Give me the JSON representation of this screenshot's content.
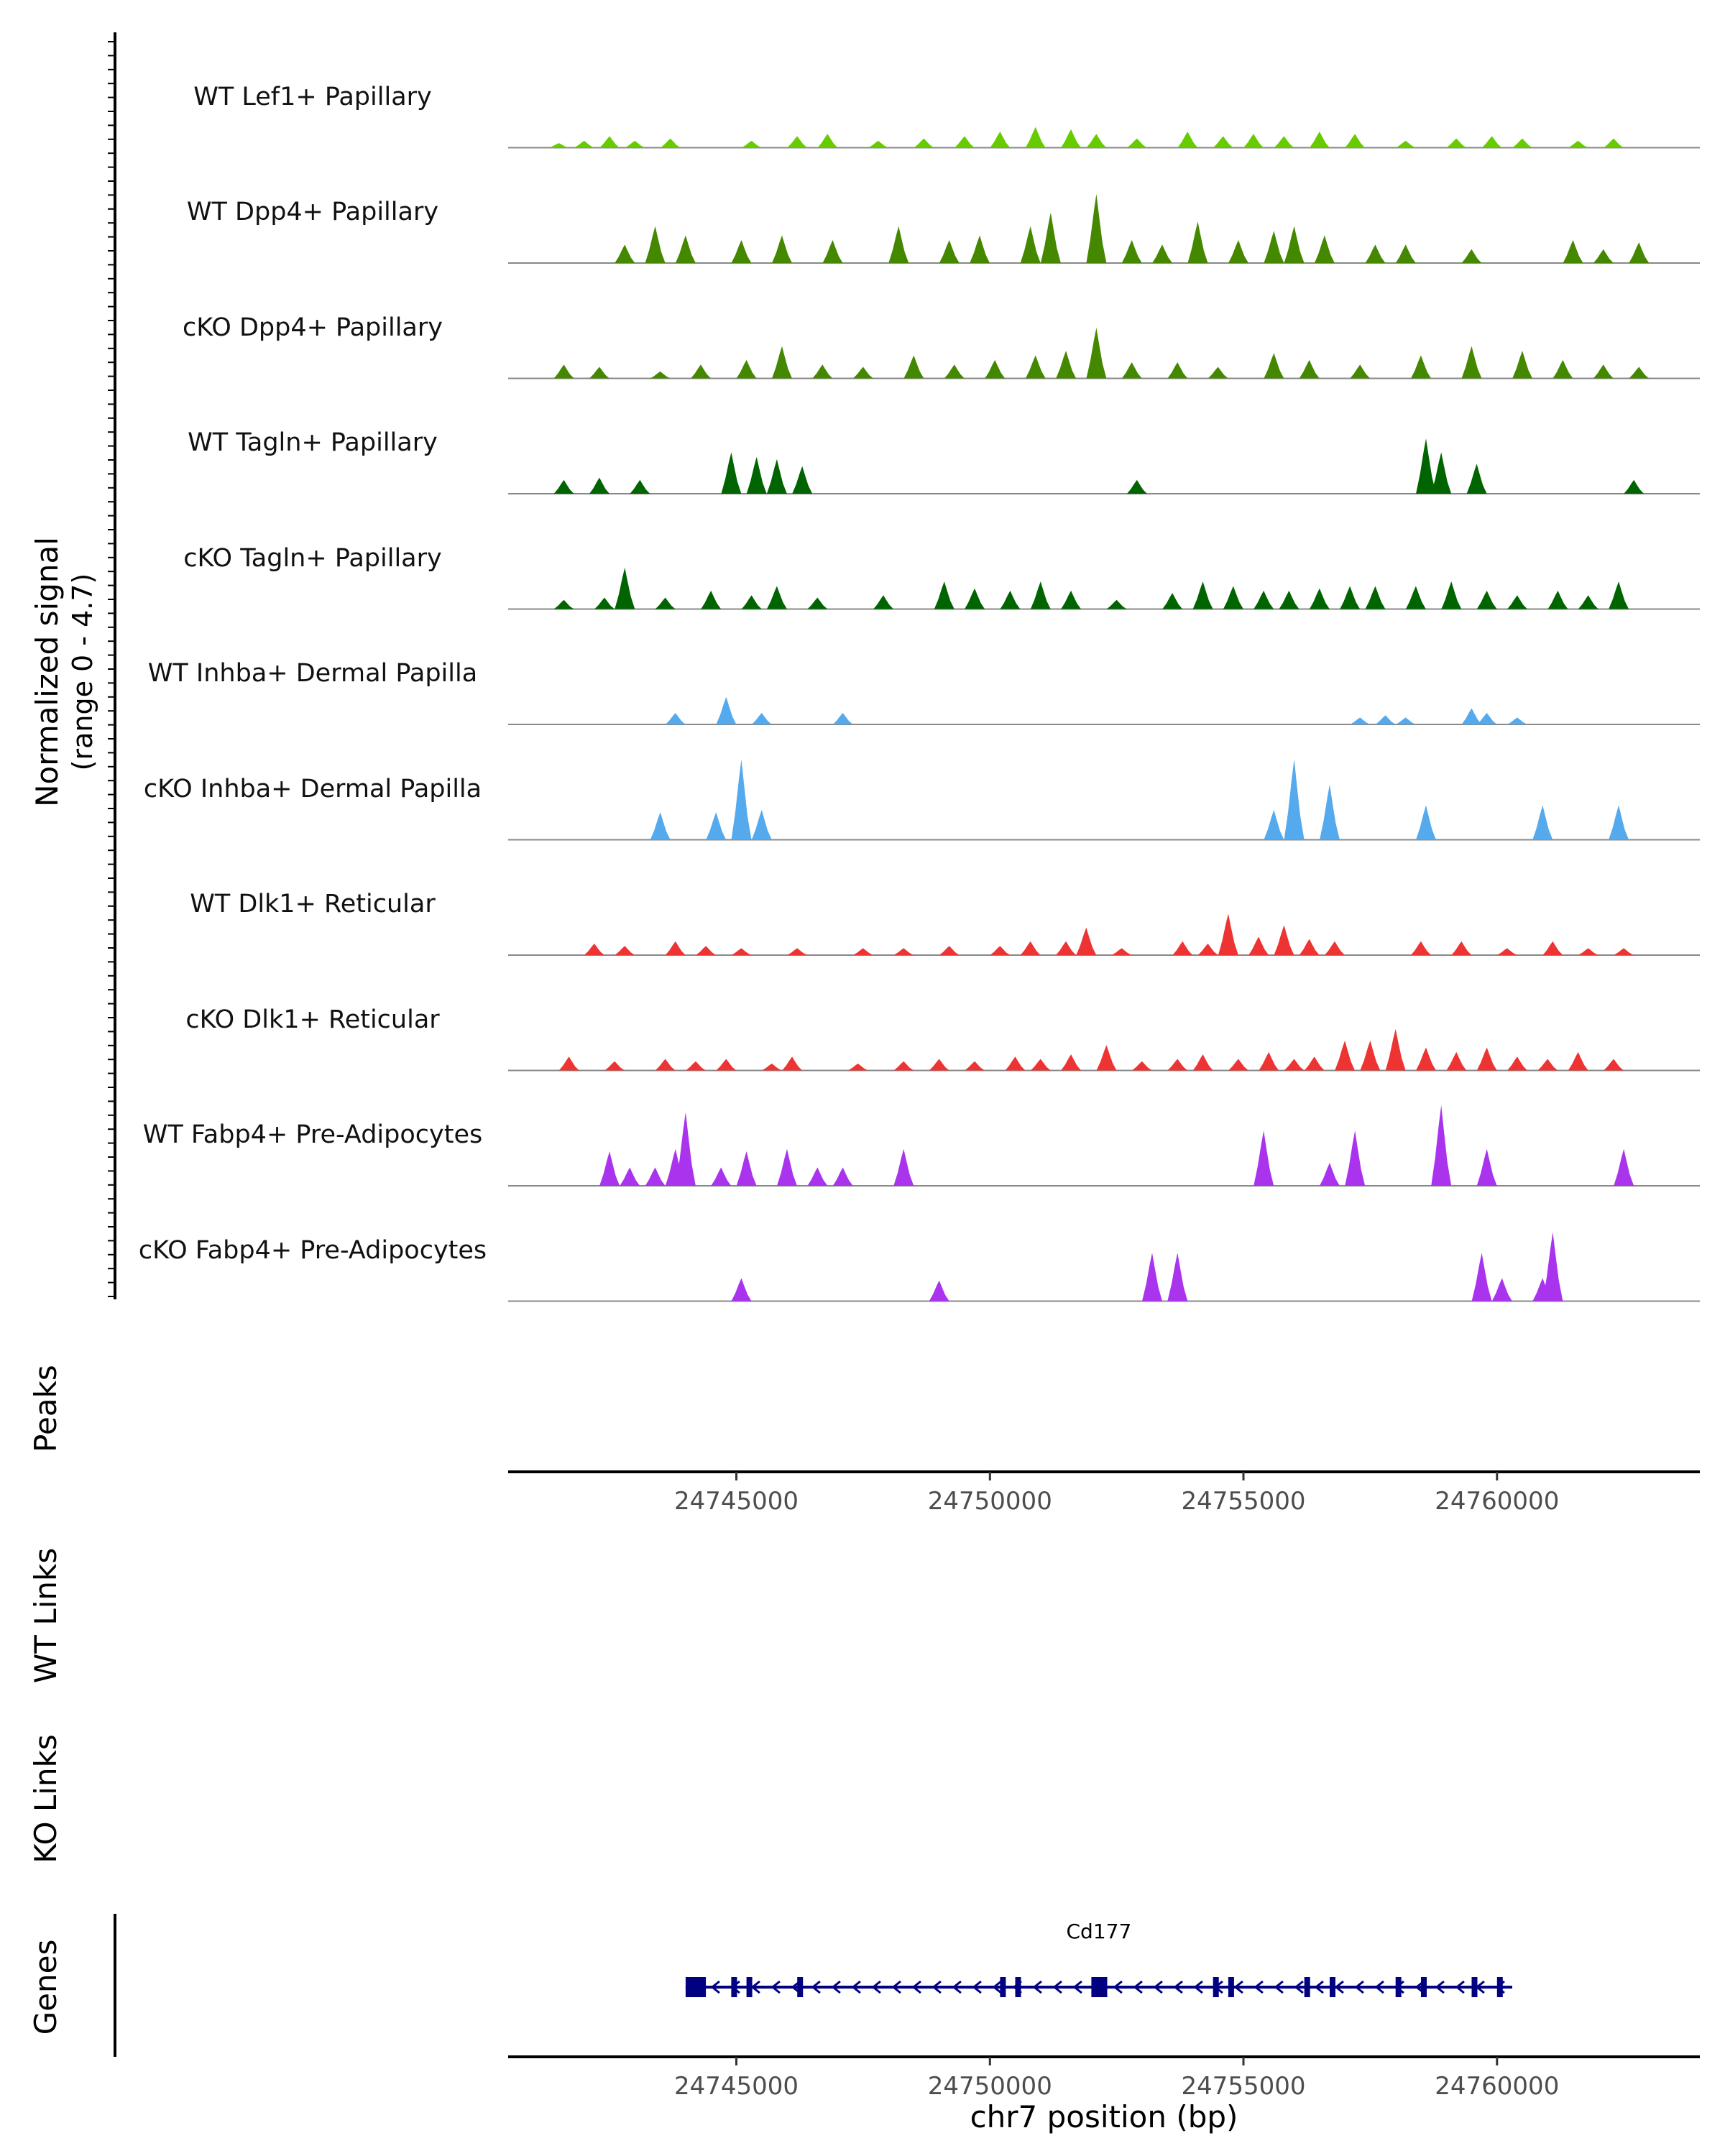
{
  "chart_data": {
    "type": "area",
    "title": "",
    "y_axis_label": "Normalized signal",
    "y_axis_range_label": "(range 0 - 4.7)",
    "y_range": [
      0,
      4.7
    ],
    "x_range": [
      24740500,
      24764000
    ],
    "x_axis_label": "chr7 position (bp)",
    "x_ticks": [
      24745000,
      24750000,
      24755000,
      24760000
    ],
    "x_tick_labels": [
      "24745000",
      "24750000",
      "24755000",
      "24760000"
    ],
    "track_labels": {
      "peaks": "Peaks",
      "wt_links": "WT Links",
      "ko_links": "KO Links",
      "genes": "Genes"
    },
    "series": [
      {
        "name": "WT Lef1+ Papillary",
        "color": "#66cc00",
        "peaks": [
          [
            24741500,
            0.2
          ],
          [
            24742000,
            0.3
          ],
          [
            24742500,
            0.5
          ],
          [
            24743000,
            0.3
          ],
          [
            24743700,
            0.4
          ],
          [
            24745300,
            0.3
          ],
          [
            24746200,
            0.5
          ],
          [
            24746800,
            0.6
          ],
          [
            24747800,
            0.3
          ],
          [
            24748700,
            0.4
          ],
          [
            24749500,
            0.5
          ],
          [
            24750200,
            0.7
          ],
          [
            24750900,
            0.9
          ],
          [
            24751600,
            0.8
          ],
          [
            24752100,
            0.6
          ],
          [
            24752900,
            0.4
          ],
          [
            24753900,
            0.7
          ],
          [
            24754600,
            0.5
          ],
          [
            24755200,
            0.6
          ],
          [
            24755800,
            0.5
          ],
          [
            24756500,
            0.7
          ],
          [
            24757200,
            0.6
          ],
          [
            24758200,
            0.3
          ],
          [
            24759200,
            0.4
          ],
          [
            24759900,
            0.5
          ],
          [
            24760500,
            0.4
          ],
          [
            24761600,
            0.3
          ],
          [
            24762300,
            0.4
          ]
        ]
      },
      {
        "name": "WT Dpp4+ Papillary",
        "color": "#448800",
        "peaks": [
          [
            24742800,
            0.8
          ],
          [
            24743400,
            1.6
          ],
          [
            24744000,
            1.2
          ],
          [
            24745100,
            1.0
          ],
          [
            24745900,
            1.2
          ],
          [
            24746900,
            1.0
          ],
          [
            24748200,
            1.6
          ],
          [
            24749200,
            1.0
          ],
          [
            24749800,
            1.2
          ],
          [
            24750800,
            1.6
          ],
          [
            24751200,
            2.2
          ],
          [
            24752100,
            3.0
          ],
          [
            24752800,
            1.0
          ],
          [
            24753400,
            0.8
          ],
          [
            24754100,
            1.8
          ],
          [
            24754900,
            1.0
          ],
          [
            24755600,
            1.4
          ],
          [
            24756000,
            1.6
          ],
          [
            24756600,
            1.2
          ],
          [
            24757600,
            0.8
          ],
          [
            24758200,
            0.8
          ],
          [
            24759500,
            0.6
          ],
          [
            24761500,
            1.0
          ],
          [
            24762100,
            0.6
          ],
          [
            24762800,
            0.9
          ]
        ]
      },
      {
        "name": "cKO Dpp4+ Papillary",
        "color": "#448800",
        "peaks": [
          [
            24741600,
            0.6
          ],
          [
            24742300,
            0.5
          ],
          [
            24743500,
            0.3
          ],
          [
            24744300,
            0.6
          ],
          [
            24745200,
            0.8
          ],
          [
            24745900,
            1.4
          ],
          [
            24746700,
            0.6
          ],
          [
            24747500,
            0.5
          ],
          [
            24748500,
            1.0
          ],
          [
            24749300,
            0.6
          ],
          [
            24750100,
            0.8
          ],
          [
            24750900,
            1.0
          ],
          [
            24751500,
            1.2
          ],
          [
            24752100,
            2.2
          ],
          [
            24752800,
            0.7
          ],
          [
            24753700,
            0.7
          ],
          [
            24754500,
            0.5
          ],
          [
            24755600,
            1.1
          ],
          [
            24756300,
            0.8
          ],
          [
            24757300,
            0.6
          ],
          [
            24758500,
            1.0
          ],
          [
            24759500,
            1.4
          ],
          [
            24760500,
            1.2
          ],
          [
            24761300,
            0.8
          ],
          [
            24762100,
            0.6
          ],
          [
            24762800,
            0.5
          ]
        ]
      },
      {
        "name": "WT Tagln+ Papillary",
        "color": "#006400",
        "peaks": [
          [
            24741600,
            0.6
          ],
          [
            24742300,
            0.7
          ],
          [
            24743100,
            0.6
          ],
          [
            24744900,
            1.8
          ],
          [
            24745400,
            1.6
          ],
          [
            24745800,
            1.5
          ],
          [
            24746300,
            1.2
          ],
          [
            24752900,
            0.6
          ],
          [
            24758600,
            2.4
          ],
          [
            24758900,
            1.8
          ],
          [
            24759600,
            1.3
          ],
          [
            24762700,
            0.6
          ]
        ]
      },
      {
        "name": "cKO Tagln+ Papillary",
        "color": "#006400",
        "peaks": [
          [
            24741600,
            0.4
          ],
          [
            24742400,
            0.5
          ],
          [
            24742800,
            1.8
          ],
          [
            24743600,
            0.5
          ],
          [
            24744500,
            0.8
          ],
          [
            24745300,
            0.6
          ],
          [
            24745800,
            1.0
          ],
          [
            24746600,
            0.5
          ],
          [
            24747900,
            0.6
          ],
          [
            24749100,
            1.2
          ],
          [
            24749700,
            0.9
          ],
          [
            24750400,
            0.8
          ],
          [
            24751000,
            1.2
          ],
          [
            24751600,
            0.8
          ],
          [
            24752500,
            0.4
          ],
          [
            24753600,
            0.7
          ],
          [
            24754200,
            1.2
          ],
          [
            24754800,
            1.0
          ],
          [
            24755400,
            0.8
          ],
          [
            24755900,
            0.8
          ],
          [
            24756500,
            0.9
          ],
          [
            24757100,
            1.0
          ],
          [
            24757600,
            1.0
          ],
          [
            24758400,
            1.0
          ],
          [
            24759100,
            1.2
          ],
          [
            24759800,
            0.8
          ],
          [
            24760400,
            0.6
          ],
          [
            24761200,
            0.8
          ],
          [
            24761800,
            0.6
          ],
          [
            24762400,
            1.2
          ]
        ]
      },
      {
        "name": "WT Inhba+ Dermal Papilla",
        "color": "#55aaee",
        "peaks": [
          [
            24743800,
            0.5
          ],
          [
            24744800,
            1.2
          ],
          [
            24745500,
            0.5
          ],
          [
            24747100,
            0.5
          ],
          [
            24757300,
            0.3
          ],
          [
            24757800,
            0.4
          ],
          [
            24758200,
            0.3
          ],
          [
            24759500,
            0.7
          ],
          [
            24759800,
            0.5
          ],
          [
            24760400,
            0.3
          ]
        ]
      },
      {
        "name": "cKO Inhba+ Dermal Papilla",
        "color": "#55aaee",
        "peaks": [
          [
            24743500,
            1.2
          ],
          [
            24744600,
            1.2
          ],
          [
            24745100,
            3.5
          ],
          [
            24745500,
            1.3
          ],
          [
            24755600,
            1.3
          ],
          [
            24756000,
            3.5
          ],
          [
            24756700,
            2.4
          ],
          [
            24758600,
            1.5
          ],
          [
            24760900,
            1.5
          ],
          [
            24762400,
            1.5
          ]
        ]
      },
      {
        "name": "WT Dlk1+ Reticular",
        "color": "#ee3333",
        "peaks": [
          [
            24742200,
            0.5
          ],
          [
            24742800,
            0.4
          ],
          [
            24743800,
            0.6
          ],
          [
            24744400,
            0.4
          ],
          [
            24745100,
            0.3
          ],
          [
            24746200,
            0.3
          ],
          [
            24747500,
            0.3
          ],
          [
            24748300,
            0.3
          ],
          [
            24749200,
            0.4
          ],
          [
            24750200,
            0.4
          ],
          [
            24750800,
            0.6
          ],
          [
            24751500,
            0.6
          ],
          [
            24751900,
            1.2
          ],
          [
            24752600,
            0.3
          ],
          [
            24753800,
            0.6
          ],
          [
            24754300,
            0.5
          ],
          [
            24754700,
            1.8
          ],
          [
            24755300,
            0.8
          ],
          [
            24755800,
            1.3
          ],
          [
            24756300,
            0.7
          ],
          [
            24756800,
            0.6
          ],
          [
            24758500,
            0.6
          ],
          [
            24759300,
            0.6
          ],
          [
            24760200,
            0.3
          ],
          [
            24761100,
            0.6
          ],
          [
            24761800,
            0.3
          ],
          [
            24762500,
            0.3
          ]
        ]
      },
      {
        "name": "cKO Dlk1+ Reticular",
        "color": "#ee3333",
        "peaks": [
          [
            24741700,
            0.6
          ],
          [
            24742600,
            0.4
          ],
          [
            24743600,
            0.5
          ],
          [
            24744200,
            0.4
          ],
          [
            24744800,
            0.5
          ],
          [
            24745700,
            0.3
          ],
          [
            24746100,
            0.6
          ],
          [
            24747400,
            0.3
          ],
          [
            24748300,
            0.4
          ],
          [
            24749000,
            0.5
          ],
          [
            24749700,
            0.4
          ],
          [
            24750500,
            0.6
          ],
          [
            24751000,
            0.5
          ],
          [
            24751600,
            0.7
          ],
          [
            24752300,
            1.1
          ],
          [
            24753000,
            0.4
          ],
          [
            24753700,
            0.5
          ],
          [
            24754200,
            0.7
          ],
          [
            24754900,
            0.5
          ],
          [
            24755500,
            0.8
          ],
          [
            24756000,
            0.5
          ],
          [
            24756400,
            0.6
          ],
          [
            24757000,
            1.3
          ],
          [
            24757500,
            1.3
          ],
          [
            24758000,
            1.8
          ],
          [
            24758600,
            1.0
          ],
          [
            24759200,
            0.8
          ],
          [
            24759800,
            1.0
          ],
          [
            24760400,
            0.6
          ],
          [
            24761000,
            0.5
          ],
          [
            24761600,
            0.8
          ],
          [
            24762300,
            0.5
          ]
        ]
      },
      {
        "name": "WT Fabp4+ Pre-Adipocytes",
        "color": "#aa33ee",
        "peaks": [
          [
            24742500,
            1.5
          ],
          [
            24742900,
            0.8
          ],
          [
            24743400,
            0.8
          ],
          [
            24743800,
            1.6
          ],
          [
            24744000,
            3.2
          ],
          [
            24744700,
            0.8
          ],
          [
            24745200,
            1.5
          ],
          [
            24746000,
            1.6
          ],
          [
            24746600,
            0.8
          ],
          [
            24747100,
            0.8
          ],
          [
            24748300,
            1.6
          ],
          [
            24755400,
            2.4
          ],
          [
            24756700,
            1.0
          ],
          [
            24757200,
            2.4
          ],
          [
            24758900,
            3.5
          ],
          [
            24759800,
            1.6
          ],
          [
            24762500,
            1.6
          ]
        ]
      },
      {
        "name": "cKO Fabp4+ Pre-Adipocytes",
        "color": "#aa33ee",
        "peaks": [
          [
            24745100,
            1.0
          ],
          [
            24749000,
            0.9
          ],
          [
            24753200,
            2.1
          ],
          [
            24753700,
            2.1
          ],
          [
            24759700,
            2.1
          ],
          [
            24760100,
            1.0
          ],
          [
            24760900,
            1.0
          ],
          [
            24761100,
            3.0
          ]
        ]
      }
    ],
    "gene": {
      "name": "Cd177",
      "color": "#000080",
      "strand": "-",
      "start": 24744000,
      "end": 24760300,
      "exons": [
        [
          24744000,
          24744400
        ],
        [
          24744900,
          24745000
        ],
        [
          24745200,
          24745300
        ],
        [
          24746200,
          24746300
        ],
        [
          24750200,
          24750300
        ],
        [
          24750500,
          24750600
        ],
        [
          24752000,
          24752200
        ],
        [
          24752200,
          24752300
        ],
        [
          24754400,
          24754500
        ],
        [
          24754700,
          24754800
        ],
        [
          24756200,
          24756300
        ],
        [
          24756700,
          24756800
        ],
        [
          24758000,
          24758100
        ],
        [
          24758500,
          24758600
        ],
        [
          24759500,
          24759600
        ],
        [
          24760000,
          24760100
        ]
      ]
    }
  }
}
